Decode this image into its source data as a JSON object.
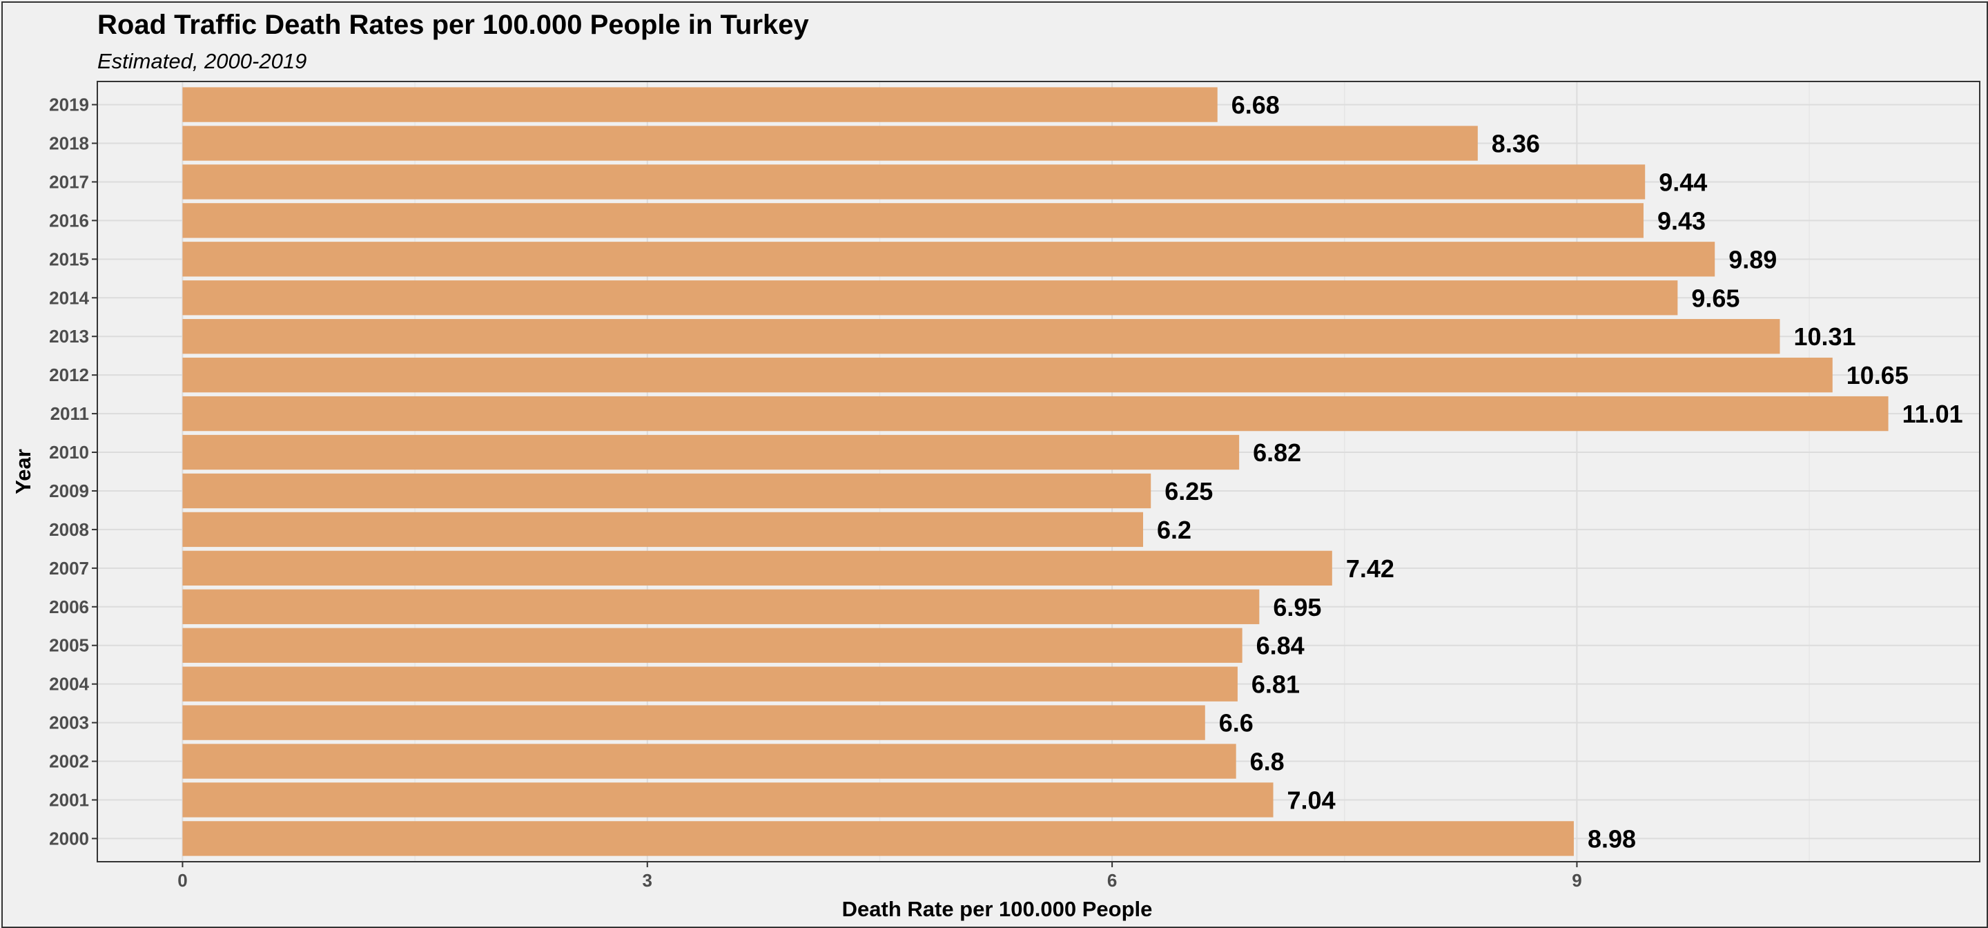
{
  "chart_data": {
    "type": "bar",
    "orientation": "horizontal",
    "title": "Road Traffic Death Rates per 100.000 People in Turkey",
    "subtitle": "Estimated, 2000-2019",
    "xlabel": "Death Rate per 100.000 People",
    "ylabel": "Year",
    "categories": [
      "2000",
      "2001",
      "2002",
      "2003",
      "2004",
      "2005",
      "2006",
      "2007",
      "2008",
      "2009",
      "2010",
      "2011",
      "2012",
      "2013",
      "2014",
      "2015",
      "2016",
      "2017",
      "2018",
      "2019"
    ],
    "values": [
      8.98,
      7.04,
      6.8,
      6.6,
      6.81,
      6.84,
      6.95,
      7.42,
      6.2,
      6.25,
      6.82,
      11.01,
      10.65,
      10.31,
      9.65,
      9.89,
      9.43,
      9.44,
      8.36,
      6.68
    ],
    "data_labels": [
      "8.98",
      "7.04",
      "6.8",
      "6.6",
      "6.81",
      "6.84",
      "6.95",
      "7.42",
      "6.2",
      "6.25",
      "6.82",
      "11.01",
      "10.65",
      "10.31",
      "9.65",
      "9.89",
      "9.43",
      "9.44",
      "8.36",
      "6.68"
    ],
    "x_ticks": [
      0,
      3,
      6,
      9
    ],
    "x_tick_labels": [
      "0",
      "3",
      "6",
      "9"
    ],
    "xlim": [
      -0.55,
      11.6
    ],
    "bar_color": "#e2a46f",
    "background_color": "#f0f0f0",
    "grid": true,
    "legend": "none"
  }
}
